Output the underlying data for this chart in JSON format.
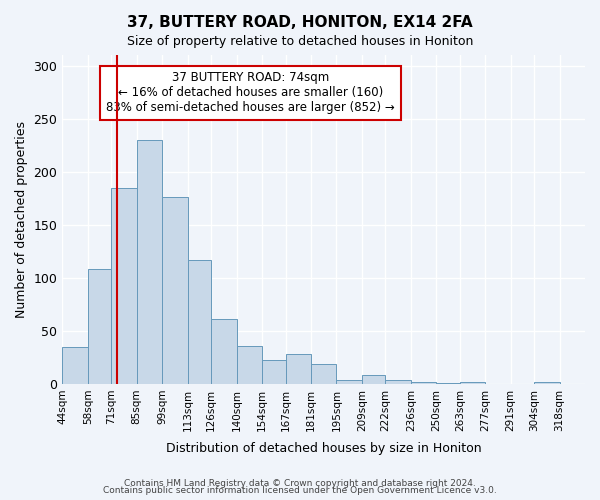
{
  "title": "37, BUTTERY ROAD, HONITON, EX14 2FA",
  "subtitle": "Size of property relative to detached houses in Honiton",
  "xlabel": "Distribution of detached houses by size in Honiton",
  "ylabel": "Number of detached properties",
  "bar_color": "#c8d8e8",
  "bar_edge_color": "#6699bb",
  "background_color": "#f0f4fa",
  "grid_color": "#ffffff",
  "bin_labels": [
    "44sqm",
    "58sqm",
    "71sqm",
    "85sqm",
    "99sqm",
    "113sqm",
    "126sqm",
    "140sqm",
    "154sqm",
    "167sqm",
    "181sqm",
    "195sqm",
    "209sqm",
    "222sqm",
    "236sqm",
    "250sqm",
    "263sqm",
    "277sqm",
    "291sqm",
    "304sqm",
    "318sqm"
  ],
  "bar_heights": [
    35,
    108,
    185,
    230,
    176,
    117,
    61,
    36,
    23,
    28,
    19,
    4,
    8,
    4,
    2,
    1,
    2,
    0,
    0,
    2,
    0
  ],
  "bin_edges": [
    44,
    58,
    71,
    85,
    99,
    113,
    126,
    140,
    154,
    167,
    181,
    195,
    209,
    222,
    236,
    250,
    263,
    277,
    291,
    304,
    318,
    332
  ],
  "property_size": 74,
  "vline_color": "#cc0000",
  "annotation_title": "37 BUTTERY ROAD: 74sqm",
  "annotation_line1": "← 16% of detached houses are smaller (160)",
  "annotation_line2": "83% of semi-detached houses are larger (852) →",
  "annotation_box_color": "#ffffff",
  "annotation_box_edge": "#cc0000",
  "ylim": [
    0,
    310
  ],
  "footer1": "Contains HM Land Registry data © Crown copyright and database right 2024.",
  "footer2": "Contains public sector information licensed under the Open Government Licence v3.0."
}
